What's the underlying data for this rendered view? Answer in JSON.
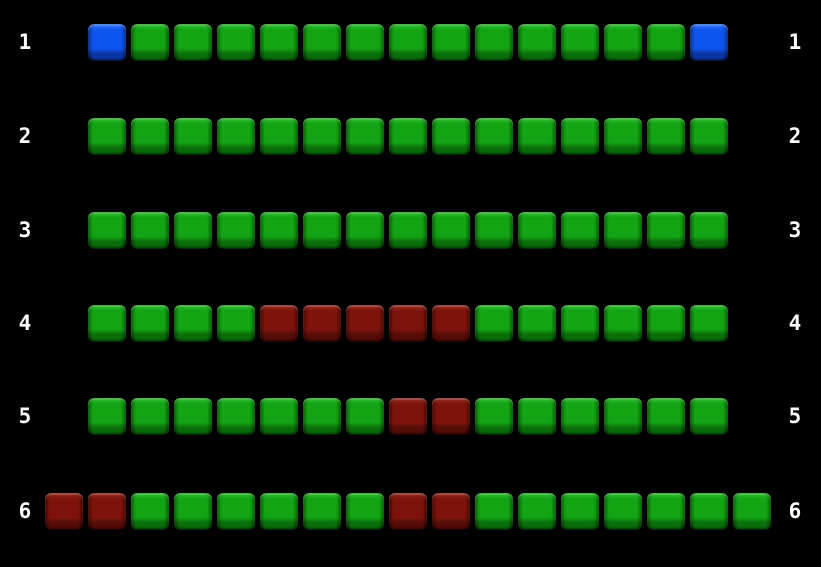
{
  "board": {
    "background_color": "#000000",
    "label_color": "#ffffff",
    "block_colors": {
      "green": "#13a413",
      "red": "#7e130c",
      "blue": "#0d55ee"
    },
    "rows": [
      {
        "left_label": "1",
        "right_label": "1",
        "start_col": 1,
        "blocks": [
          "blue",
          "green",
          "green",
          "green",
          "green",
          "green",
          "green",
          "green",
          "green",
          "green",
          "green",
          "green",
          "green",
          "green",
          "blue"
        ]
      },
      {
        "left_label": "2",
        "right_label": "2",
        "start_col": 1,
        "blocks": [
          "green",
          "green",
          "green",
          "green",
          "green",
          "green",
          "green",
          "green",
          "green",
          "green",
          "green",
          "green",
          "green",
          "green",
          "green"
        ]
      },
      {
        "left_label": "3",
        "right_label": "3",
        "start_col": 1,
        "blocks": [
          "green",
          "green",
          "green",
          "green",
          "green",
          "green",
          "green",
          "green",
          "green",
          "green",
          "green",
          "green",
          "green",
          "green",
          "green"
        ]
      },
      {
        "left_label": "4",
        "right_label": "4",
        "start_col": 1,
        "blocks": [
          "green",
          "green",
          "green",
          "green",
          "red",
          "red",
          "red",
          "red",
          "red",
          "green",
          "green",
          "green",
          "green",
          "green",
          "green"
        ]
      },
      {
        "left_label": "5",
        "right_label": "5",
        "start_col": 1,
        "blocks": [
          "green",
          "green",
          "green",
          "green",
          "green",
          "green",
          "green",
          "red",
          "red",
          "green",
          "green",
          "green",
          "green",
          "green",
          "green"
        ]
      },
      {
        "left_label": "6",
        "right_label": "6",
        "start_col": 0,
        "blocks": [
          "red",
          "red",
          "green",
          "green",
          "green",
          "green",
          "green",
          "green",
          "red",
          "red",
          "green",
          "green",
          "green",
          "green",
          "green",
          "green",
          "green"
        ]
      }
    ]
  }
}
